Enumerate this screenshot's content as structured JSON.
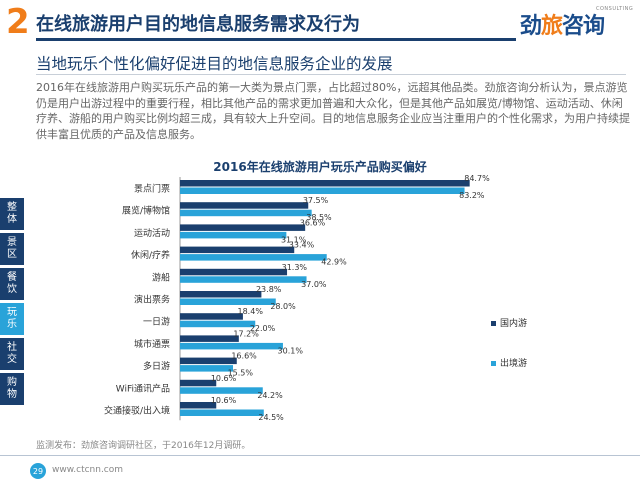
{
  "header": {
    "number": "2",
    "title": "在线旅游用户目的地信息服务需求及行为",
    "logo_main_left": "劲",
    "logo_main_mid": "旅",
    "logo_main_right": "咨询",
    "logo_sub": "CONSULTING"
  },
  "subtitle": "当地玩乐个性化偏好促进目的地信息服务企业的发展",
  "paragraph": "2016年在线旅游用户购买玩乐产品的第一大类为景点门票，占比超过80%，远超其他品类。劲旅咨询分析认为，景点游览仍是用户出游过程中的重要行程，相比其他产品的需求更加普遍和大众化，但是其他产品如展览/博物馆、运动活动、休闲疗养、游船的用户购买比例均超三成，具有较大上升空间。目的地信息服务企业应当注重用户的个性化需求，为用户持续提供丰富且优质的产品及信息服务。",
  "sidebar": [
    {
      "label": "整\n体",
      "active": false
    },
    {
      "label": "景\n区",
      "active": false
    },
    {
      "label": "餐\n饮",
      "active": false
    },
    {
      "label": "玩\n乐",
      "active": true
    },
    {
      "label": "社\n交",
      "active": false
    },
    {
      "label": "购\n物",
      "active": false
    }
  ],
  "chart_data": {
    "type": "bar",
    "orientation": "horizontal",
    "title": "2016年在线旅游用户玩乐产品购买偏好",
    "categories": [
      "景点门票",
      "展览/博物馆",
      "运动活动",
      "休闲/疗养",
      "游船",
      "演出票务",
      "一日游",
      "城市通票",
      "多日游",
      "WiFi通讯产品",
      "交通接驳/出入境"
    ],
    "series": [
      {
        "name": "国内游",
        "color": "#1a3f6e",
        "values": [
          84.7,
          37.5,
          36.6,
          33.4,
          31.3,
          23.8,
          18.4,
          17.2,
          16.6,
          10.6,
          10.6
        ],
        "labels": [
          "84.7%",
          "37.5%",
          "36.6%",
          "33.4%",
          "31.3%",
          "23.8%",
          "18.4%",
          "17.2%",
          "16.6%",
          "10.6%",
          "10.6%"
        ]
      },
      {
        "name": "出境游",
        "color": "#29a3d9",
        "values": [
          83.2,
          38.5,
          31.1,
          42.9,
          37.0,
          28.0,
          22.0,
          30.1,
          15.5,
          24.2,
          24.5
        ],
        "labels": [
          "83.2%",
          "38.5%",
          "31.1%",
          "42.9%",
          "37.0%",
          "28.0%",
          "22.0%",
          "30.1%",
          "15.5%",
          "24.2%",
          "24.5%"
        ]
      }
    ],
    "xlim": [
      0,
      100
    ],
    "grid": false,
    "legend_position": "right"
  },
  "source": "监测发布：劲旅咨询调研社区，于2016年12月调研。",
  "footer": {
    "page": "29",
    "url": "www.ctcnn.com"
  }
}
